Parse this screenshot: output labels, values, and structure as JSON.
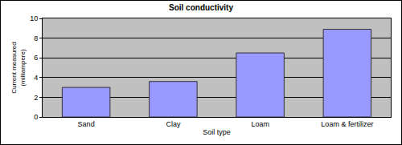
{
  "chart_data": {
    "type": "bar",
    "title": "Soil conductivity",
    "x_label": "Soil type",
    "y_label": "Current measured (milliampere)",
    "categories": [
      "Sand",
      "Clay",
      "Loam",
      "Loam & fertilizer"
    ],
    "values": [
      3.0,
      3.6,
      6.5,
      8.9
    ],
    "color": "#9999ff",
    "ylim": [
      0,
      10
    ],
    "yticks": [
      0,
      2,
      4,
      6,
      8,
      10
    ],
    "grid": true
  }
}
